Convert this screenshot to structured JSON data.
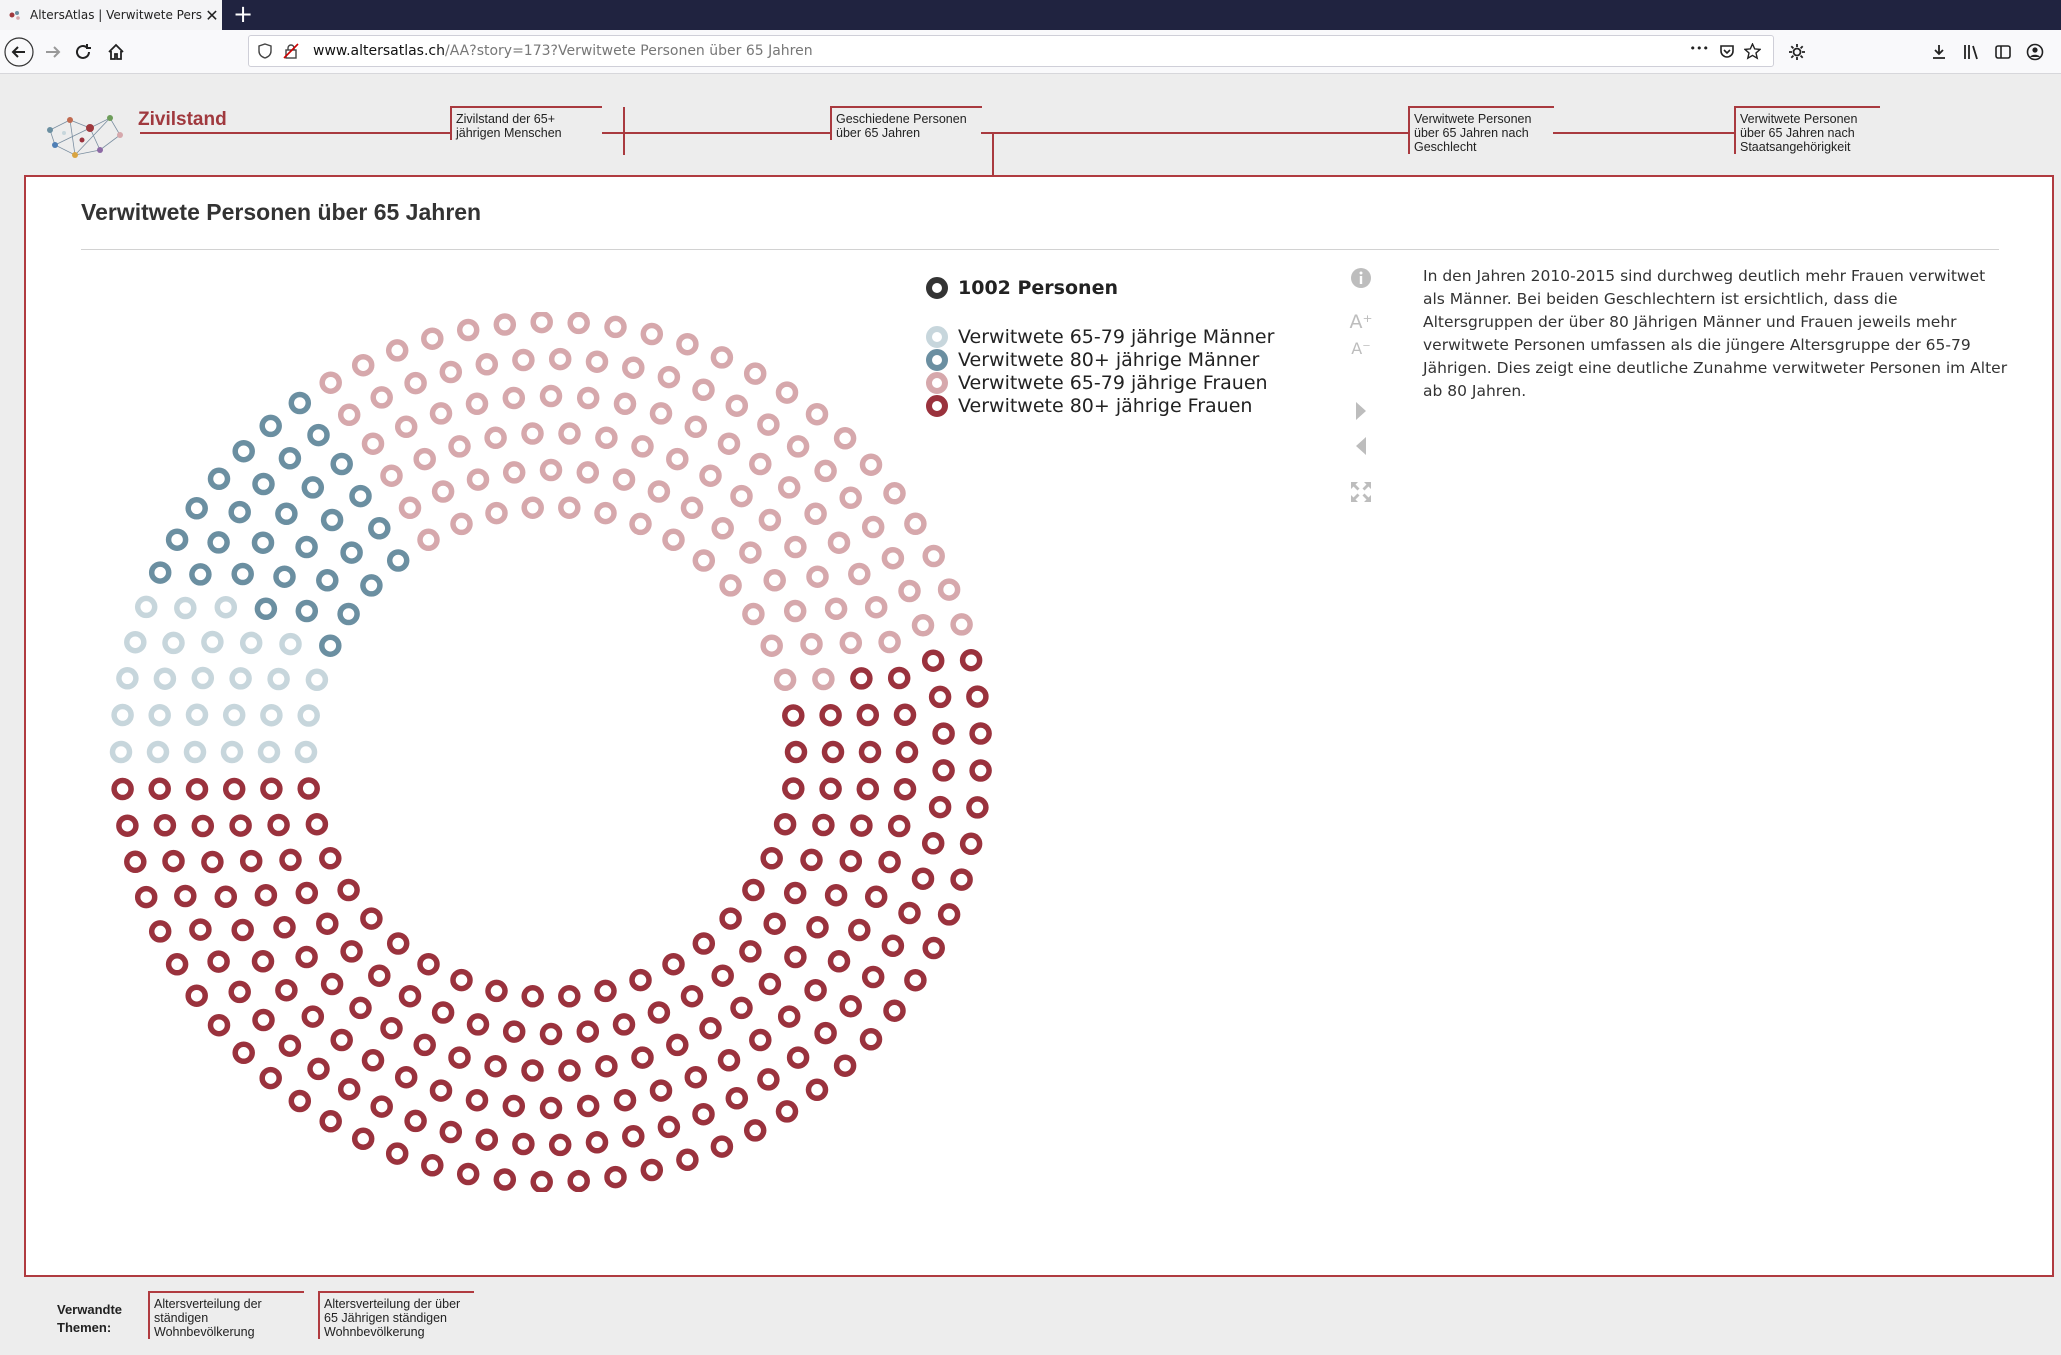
{
  "browser": {
    "tab_title": "AltersAtlas | Verwitwete Person…",
    "close_label": "✕",
    "new_tab_label": "+",
    "url_host": "www.altersatlas.ch",
    "url_path": "/AA?story=173?Verwitwete Personen über 65 Jahren",
    "url_more": "•••"
  },
  "header": {
    "topic": "Zivilstand",
    "crumbs": [
      "Zivilstand der 65+ jährigen Menschen",
      "Geschiedene Personen über 65 Jahren",
      "Verwitwete Personen über 65 Jahren nach Geschlecht",
      "Verwitwete Personen über 65 Jahren nach Staatsangehörigkeit"
    ]
  },
  "card": {
    "title": "Verwitwete Personen über 65 Jahren",
    "description": "In den Jahren 2010-2015 sind durchweg deutlich mehr Frauen verwitwet als Männer. Bei beiden Geschlechtern ist ersichtlich, dass die Altersgruppen der über 80 Jährigen Männer und Frauen jeweils mehr verwitwete Personen umfassen als die jüngere Altersgruppe der 65-79 Jährigen. Dies zeigt eine deutliche Zunahme verwitweter Personen im Alter ab 80 Jahren."
  },
  "tools": {
    "font_up": "A⁺",
    "font_down": "A⁻"
  },
  "chart_data": {
    "type": "dot-donut",
    "total_label": "1002 Personen",
    "series": [
      {
        "name": "Verwitwete 65-79 jährige Männer",
        "value": 36,
        "color": "#c7d6dc"
      },
      {
        "name": "Verwitwete 80+ jährige Männer",
        "value": 48,
        "color": "#6b8fa1"
      },
      {
        "name": "Verwitwete 65-79 jährige Frauen",
        "value": 162,
        "color": "#d6a8ac"
      },
      {
        "name": "Verwitwete 80+ jährige Frauen",
        "value": 288,
        "color": "#9a323d"
      }
    ],
    "legend_position": "right",
    "total_color": "#333333"
  },
  "related": {
    "label": "Verwandte Themen:",
    "items": [
      "Altersverteilung der ständigen Wohnbevölkerung",
      "Altersverteilung der über 65 Jährigen ständigen Wohnbevölkerung"
    ]
  }
}
